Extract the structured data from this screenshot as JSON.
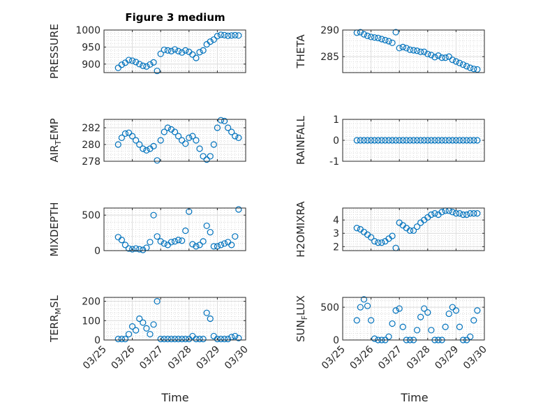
{
  "chart_data": {
    "type": "scatter",
    "title": "Figure 3 medium",
    "xlabel": "Time",
    "x_ticks": [
      "03/25",
      "03/26",
      "03/27",
      "03/28",
      "03/29",
      "03/30"
    ],
    "xlim": [
      "03/25",
      "03/30"
    ],
    "marker": "open-circle",
    "grid": true,
    "color": "#0072BD",
    "panels": [
      {
        "name": "PRESSURE",
        "ylabel": "PRESSURE",
        "ylabel_sub": "",
        "ylim": [
          875,
          1000
        ],
        "yticks": [
          900,
          950,
          1000
        ],
        "series": [
          {
            "x": [
              "03/25 12:00",
              "03/25 15:00",
              "03/25 18:00",
              "03/25 21:00",
              "03/26 00:00",
              "03/26 03:00",
              "03/26 06:00",
              "03/26 09:00",
              "03/26 12:00",
              "03/26 15:00",
              "03/26 18:00",
              "03/26 21:00",
              "03/27 00:00",
              "03/27 03:00",
              "03/27 06:00",
              "03/27 09:00",
              "03/27 12:00",
              "03/27 15:00",
              "03/27 18:00",
              "03/27 21:00",
              "03/28 00:00",
              "03/28 03:00",
              "03/28 06:00",
              "03/28 09:00",
              "03/28 12:00",
              "03/28 15:00",
              "03/28 18:00",
              "03/28 21:00",
              "03/29 00:00",
              "03/29 03:00",
              "03/29 06:00",
              "03/29 09:00",
              "03/29 12:00",
              "03/29 15:00",
              "03/29 18:00"
            ],
            "y": [
              889,
              898,
              904,
              912,
              910,
              906,
              900,
              895,
              893,
              899,
              905,
              880,
              930,
              942,
              940,
              938,
              943,
              938,
              934,
              940,
              936,
              928,
              918,
              935,
              940,
              958,
              966,
              972,
              982,
              986,
              985,
              983,
              984,
              985,
              984
            ]
          }
        ]
      },
      {
        "name": "THETA",
        "ylabel": "THETA",
        "ylabel_sub": "",
        "ylim": [
          282,
          290
        ],
        "yticks": [
          285,
          290
        ],
        "series": [
          {
            "x": [
              "03/25 12:00",
              "03/25 15:00",
              "03/25 18:00",
              "03/25 21:00",
              "03/26 00:00",
              "03/26 03:00",
              "03/26 06:00",
              "03/26 09:00",
              "03/26 12:00",
              "03/26 15:00",
              "03/26 18:00",
              "03/26 21:00",
              "03/27 00:00",
              "03/27 03:00",
              "03/27 06:00",
              "03/27 09:00",
              "03/27 12:00",
              "03/27 15:00",
              "03/27 18:00",
              "03/27 21:00",
              "03/28 00:00",
              "03/28 03:00",
              "03/28 06:00",
              "03/28 09:00",
              "03/28 12:00",
              "03/28 15:00",
              "03/28 18:00",
              "03/28 21:00",
              "03/29 00:00",
              "03/29 03:00",
              "03/29 06:00",
              "03/29 09:00",
              "03/29 12:00",
              "03/29 15:00",
              "03/29 18:00"
            ],
            "y": [
              289.5,
              289.6,
              289.2,
              288.9,
              288.7,
              288.6,
              288.5,
              288.3,
              288.1,
              287.9,
              287.6,
              289.6,
              286.6,
              286.8,
              286.6,
              286.3,
              286.2,
              286.1,
              285.9,
              285.9,
              285.5,
              285.3,
              284.9,
              285.2,
              284.8,
              284.8,
              285.0,
              284.4,
              284.1,
              283.8,
              283.5,
              283.2,
              282.9,
              282.7,
              282.6
            ]
          }
        ]
      },
      {
        "name": "AIR_TEMP",
        "ylabel": "AIR",
        "ylabel_sub": "T",
        "ylabel_rest": "EMP",
        "ylim": [
          278,
          283
        ],
        "yticks": [
          278,
          280,
          282
        ],
        "series": [
          {
            "x": [
              "03/25 12:00",
              "03/25 15:00",
              "03/25 18:00",
              "03/25 21:00",
              "03/26 00:00",
              "03/26 03:00",
              "03/26 06:00",
              "03/26 09:00",
              "03/26 12:00",
              "03/26 15:00",
              "03/26 18:00",
              "03/26 21:00",
              "03/27 00:00",
              "03/27 03:00",
              "03/27 06:00",
              "03/27 09:00",
              "03/27 12:00",
              "03/27 15:00",
              "03/27 18:00",
              "03/27 21:00",
              "03/28 00:00",
              "03/28 03:00",
              "03/28 06:00",
              "03/28 09:00",
              "03/28 12:00",
              "03/28 15:00",
              "03/28 18:00",
              "03/28 21:00",
              "03/29 00:00",
              "03/29 03:00",
              "03/29 06:00",
              "03/29 09:00",
              "03/29 12:00",
              "03/29 15:00",
              "03/29 18:00"
            ],
            "y": [
              280.0,
              280.8,
              281.3,
              281.4,
              281.0,
              280.5,
              280.0,
              279.5,
              279.3,
              279.5,
              279.8,
              278.1,
              280.5,
              281.5,
              282.0,
              281.8,
              281.5,
              281.0,
              280.5,
              280.1,
              280.8,
              281.0,
              280.5,
              279.5,
              278.6,
              278.2,
              278.6,
              280.0,
              282.0,
              282.9,
              282.8,
              282.0,
              281.5,
              281.0,
              280.8
            ]
          }
        ]
      },
      {
        "name": "RAINFALL",
        "ylabel": "RAINFALL",
        "ylabel_sub": "",
        "ylim": [
          -1,
          1
        ],
        "yticks": [
          -1,
          0,
          1
        ],
        "series": [
          {
            "x": [
              "03/25 12:00",
              "03/25 15:00",
              "03/25 18:00",
              "03/25 21:00",
              "03/26 00:00",
              "03/26 03:00",
              "03/26 06:00",
              "03/26 09:00",
              "03/26 12:00",
              "03/26 15:00",
              "03/26 18:00",
              "03/26 21:00",
              "03/27 00:00",
              "03/27 03:00",
              "03/27 06:00",
              "03/27 09:00",
              "03/27 12:00",
              "03/27 15:00",
              "03/27 18:00",
              "03/27 21:00",
              "03/28 00:00",
              "03/28 03:00",
              "03/28 06:00",
              "03/28 09:00",
              "03/28 12:00",
              "03/28 15:00",
              "03/28 18:00",
              "03/28 21:00",
              "03/29 00:00",
              "03/29 03:00",
              "03/29 06:00",
              "03/29 09:00",
              "03/29 12:00",
              "03/29 15:00",
              "03/29 18:00"
            ],
            "y": [
              0,
              0,
              0,
              0,
              0,
              0,
              0,
              0,
              0,
              0,
              0,
              0,
              0,
              0,
              0,
              0,
              0,
              0,
              0,
              0,
              0,
              0,
              0,
              0,
              0,
              0,
              0,
              0,
              0,
              0,
              0,
              0,
              0,
              0,
              0
            ]
          }
        ]
      },
      {
        "name": "MIXDEPTH",
        "ylabel": "MIXDEPTH",
        "ylabel_sub": "",
        "ylim": [
          0,
          600
        ],
        "yticks": [
          0,
          500
        ],
        "series": [
          {
            "x": [
              "03/25 12:00",
              "03/25 15:00",
              "03/25 18:00",
              "03/25 21:00",
              "03/26 00:00",
              "03/26 03:00",
              "03/26 06:00",
              "03/26 09:00",
              "03/26 12:00",
              "03/26 15:00",
              "03/26 18:00",
              "03/26 21:00",
              "03/27 00:00",
              "03/27 03:00",
              "03/27 06:00",
              "03/27 09:00",
              "03/27 12:00",
              "03/27 15:00",
              "03/27 18:00",
              "03/27 21:00",
              "03/28 00:00",
              "03/28 03:00",
              "03/28 06:00",
              "03/28 09:00",
              "03/28 12:00",
              "03/28 15:00",
              "03/28 18:00",
              "03/28 21:00",
              "03/29 00:00",
              "03/29 03:00",
              "03/29 06:00",
              "03/29 09:00",
              "03/29 12:00",
              "03/29 15:00",
              "03/29 18:00"
            ],
            "y": [
              190,
              150,
              80,
              30,
              20,
              30,
              20,
              10,
              40,
              120,
              500,
              200,
              130,
              100,
              80,
              120,
              130,
              150,
              140,
              280,
              550,
              90,
              60,
              80,
              130,
              350,
              260,
              60,
              60,
              80,
              100,
              120,
              80,
              200,
              580
            ]
          }
        ]
      },
      {
        "name": "H2OMIXRA",
        "ylabel": "H2OMIXRA",
        "ylabel_sub": "",
        "ylim": [
          1.7,
          4.9
        ],
        "yticks": [
          2,
          3,
          4
        ],
        "series": [
          {
            "x": [
              "03/25 12:00",
              "03/25 15:00",
              "03/25 18:00",
              "03/25 21:00",
              "03/26 00:00",
              "03/26 03:00",
              "03/26 06:00",
              "03/26 09:00",
              "03/26 12:00",
              "03/26 15:00",
              "03/26 18:00",
              "03/26 21:00",
              "03/27 00:00",
              "03/27 03:00",
              "03/27 06:00",
              "03/27 09:00",
              "03/27 12:00",
              "03/27 15:00",
              "03/27 18:00",
              "03/27 21:00",
              "03/28 00:00",
              "03/28 03:00",
              "03/28 06:00",
              "03/28 09:00",
              "03/28 12:00",
              "03/28 15:00",
              "03/28 18:00",
              "03/28 21:00",
              "03/29 00:00",
              "03/29 03:00",
              "03/29 06:00",
              "03/29 09:00",
              "03/29 12:00",
              "03/29 15:00",
              "03/29 18:00"
            ],
            "y": [
              3.4,
              3.3,
              3.1,
              2.9,
              2.7,
              2.4,
              2.3,
              2.3,
              2.4,
              2.6,
              2.8,
              1.9,
              3.8,
              3.6,
              3.4,
              3.2,
              3.2,
              3.5,
              3.8,
              4.0,
              4.2,
              4.4,
              4.5,
              4.4,
              4.6,
              4.7,
              4.7,
              4.6,
              4.5,
              4.5,
              4.4,
              4.4,
              4.5,
              4.5,
              4.5
            ]
          }
        ]
      },
      {
        "name": "TERR_MSL",
        "ylabel": "TERR",
        "ylabel_sub": "M",
        "ylabel_rest": "SL",
        "ylim": [
          0,
          220
        ],
        "yticks": [
          0,
          100,
          200
        ],
        "series": [
          {
            "x": [
              "03/25 12:00",
              "03/25 15:00",
              "03/25 18:00",
              "03/25 21:00",
              "03/26 00:00",
              "03/26 03:00",
              "03/26 06:00",
              "03/26 09:00",
              "03/26 12:00",
              "03/26 15:00",
              "03/26 18:00",
              "03/26 21:00",
              "03/27 00:00",
              "03/27 03:00",
              "03/27 06:00",
              "03/27 09:00",
              "03/27 12:00",
              "03/27 15:00",
              "03/27 18:00",
              "03/27 21:00",
              "03/28 00:00",
              "03/28 03:00",
              "03/28 06:00",
              "03/28 09:00",
              "03/28 12:00",
              "03/28 15:00",
              "03/28 18:00",
              "03/28 21:00",
              "03/29 00:00",
              "03/29 03:00",
              "03/29 06:00",
              "03/29 09:00",
              "03/29 12:00",
              "03/29 15:00",
              "03/29 18:00"
            ],
            "y": [
              5,
              5,
              5,
              30,
              70,
              50,
              110,
              90,
              60,
              30,
              80,
              200,
              5,
              5,
              5,
              5,
              5,
              5,
              5,
              5,
              5,
              20,
              5,
              5,
              5,
              140,
              110,
              20,
              5,
              5,
              5,
              5,
              15,
              20,
              10
            ]
          }
        ]
      },
      {
        "name": "SUN_FLUX",
        "ylabel": "SUN",
        "ylabel_sub": "F",
        "ylabel_rest": "LUX",
        "ylim": [
          0,
          650
        ],
        "yticks": [
          0,
          500
        ],
        "series": [
          {
            "x": [
              "03/25 12:00",
              "03/25 15:00",
              "03/25 18:00",
              "03/25 21:00",
              "03/26 00:00",
              "03/26 03:00",
              "03/26 06:00",
              "03/26 09:00",
              "03/26 12:00",
              "03/26 15:00",
              "03/26 18:00",
              "03/26 21:00",
              "03/27 00:00",
              "03/27 03:00",
              "03/27 06:00",
              "03/27 09:00",
              "03/27 12:00",
              "03/27 15:00",
              "03/27 18:00",
              "03/27 21:00",
              "03/28 00:00",
              "03/28 03:00",
              "03/28 06:00",
              "03/28 09:00",
              "03/28 12:00",
              "03/28 15:00",
              "03/28 18:00",
              "03/28 21:00",
              "03/29 00:00",
              "03/29 03:00",
              "03/29 06:00",
              "03/29 09:00",
              "03/29 12:00",
              "03/29 15:00",
              "03/29 18:00"
            ],
            "y": [
              300,
              500,
              620,
              520,
              300,
              20,
              0,
              0,
              0,
              50,
              250,
              450,
              480,
              200,
              0,
              0,
              0,
              150,
              350,
              480,
              420,
              150,
              0,
              0,
              0,
              200,
              400,
              500,
              450,
              200,
              0,
              0,
              50,
              300,
              450
            ]
          }
        ]
      }
    ]
  }
}
